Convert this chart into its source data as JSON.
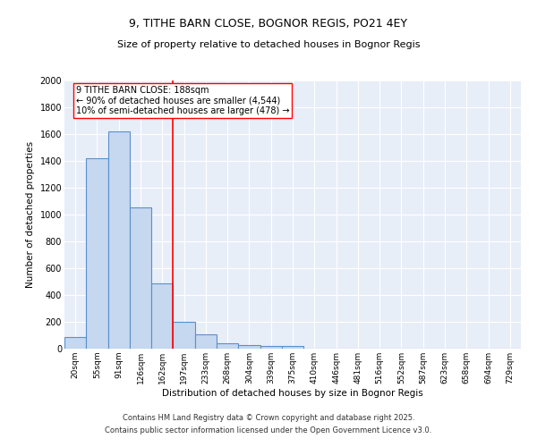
{
  "title1": "9, TITHE BARN CLOSE, BOGNOR REGIS, PO21 4EY",
  "title2": "Size of property relative to detached houses in Bognor Regis",
  "xlabel": "Distribution of detached houses by size in Bognor Regis",
  "ylabel": "Number of detached properties",
  "categories": [
    "20sqm",
    "55sqm",
    "91sqm",
    "126sqm",
    "162sqm",
    "197sqm",
    "233sqm",
    "268sqm",
    "304sqm",
    "339sqm",
    "375sqm",
    "410sqm",
    "446sqm",
    "481sqm",
    "516sqm",
    "552sqm",
    "587sqm",
    "623sqm",
    "658sqm",
    "694sqm",
    "729sqm"
  ],
  "values": [
    85,
    1420,
    1620,
    1055,
    490,
    200,
    105,
    40,
    30,
    20,
    20,
    0,
    0,
    0,
    0,
    0,
    0,
    0,
    0,
    0,
    0
  ],
  "bar_color": "#c5d8f0",
  "bar_edge_color": "#5b8fc9",
  "vline_x": 4.5,
  "vline_color": "red",
  "annotation_text": "9 TITHE BARN CLOSE: 188sqm\n← 90% of detached houses are smaller (4,544)\n10% of semi-detached houses are larger (478) →",
  "ylim": [
    0,
    2000
  ],
  "yticks": [
    0,
    200,
    400,
    600,
    800,
    1000,
    1200,
    1400,
    1600,
    1800,
    2000
  ],
  "background_color": "#e8eef8",
  "grid_color": "#ffffff",
  "footer1": "Contains HM Land Registry data © Crown copyright and database right 2025.",
  "footer2": "Contains public sector information licensed under the Open Government Licence v3.0."
}
